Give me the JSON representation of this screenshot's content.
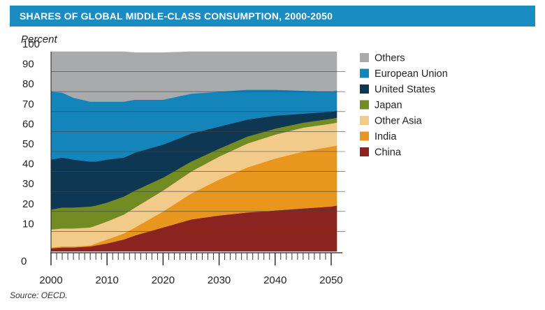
{
  "chart_data": {
    "type": "area",
    "stacked": true,
    "title": "SHARES OF GLOBAL MIDDLE-CLASS CONSUMPTION, 2000-2050",
    "ylabel": "Percent",
    "xlabel": "",
    "source": "Source: OECD.",
    "x": [
      2000,
      2002,
      2004,
      2007,
      2008,
      2010,
      2013,
      2015,
      2020,
      2025,
      2030,
      2035,
      2040,
      2045,
      2050,
      2051
    ],
    "xlim": [
      2000,
      2051
    ],
    "ylim": [
      0,
      100
    ],
    "x_ticks": [
      "2000",
      "2010",
      "2020",
      "2030",
      "2040",
      "2050"
    ],
    "y_ticks": [
      "0",
      "10",
      "20",
      "30",
      "40",
      "50",
      "60",
      "70",
      "80",
      "90",
      "100"
    ],
    "series": [
      {
        "name": "China",
        "color": "#8b2320",
        "values": [
          1.5,
          2,
          2,
          2.5,
          3,
          4,
          6,
          8,
          12,
          16,
          18,
          19.5,
          20.5,
          21.5,
          22.5,
          23
        ]
      },
      {
        "name": "India",
        "color": "#e8961e",
        "values": [
          0.5,
          0.5,
          0.5,
          0.5,
          1,
          2,
          3,
          4,
          8,
          13,
          18,
          22.5,
          26,
          28.5,
          30,
          30
        ]
      },
      {
        "name": "Other Asia",
        "color": "#f2cb8a",
        "values": [
          9,
          9,
          9,
          9,
          9,
          9,
          9.5,
          10,
          10.5,
          11,
          11.5,
          12,
          12,
          12,
          11.5,
          11.5
        ]
      },
      {
        "name": "Japan",
        "color": "#728b22",
        "values": [
          10,
          10.5,
          10.5,
          10.5,
          10,
          9.5,
          9,
          8.5,
          6.5,
          5,
          4,
          3.5,
          3,
          2.5,
          2.5,
          2.5
        ]
      },
      {
        "name": "United States",
        "color": "#0e3754",
        "values": [
          25,
          25,
          24,
          22.5,
          22,
          21.5,
          19.5,
          19,
          16.5,
          14,
          11,
          8.5,
          6.5,
          4.5,
          3.5,
          3.5
        ]
      },
      {
        "name": "European Union",
        "color": "#1485bb",
        "values": [
          34,
          32.5,
          31,
          30,
          30,
          29,
          28,
          26.5,
          22.5,
          20,
          17.5,
          15,
          13,
          11.5,
          10,
          10
        ]
      },
      {
        "name": "Others",
        "color": "#a9aaac",
        "values": [
          20,
          20.5,
          23,
          25,
          25,
          25,
          25,
          23.5,
          23.5,
          21,
          20,
          19,
          19,
          19.5,
          20,
          19.5
        ]
      }
    ],
    "legend_order": [
      "Others",
      "European Union",
      "United States",
      "Japan",
      "Other Asia",
      "India",
      "China"
    ],
    "legend_position": "right"
  }
}
